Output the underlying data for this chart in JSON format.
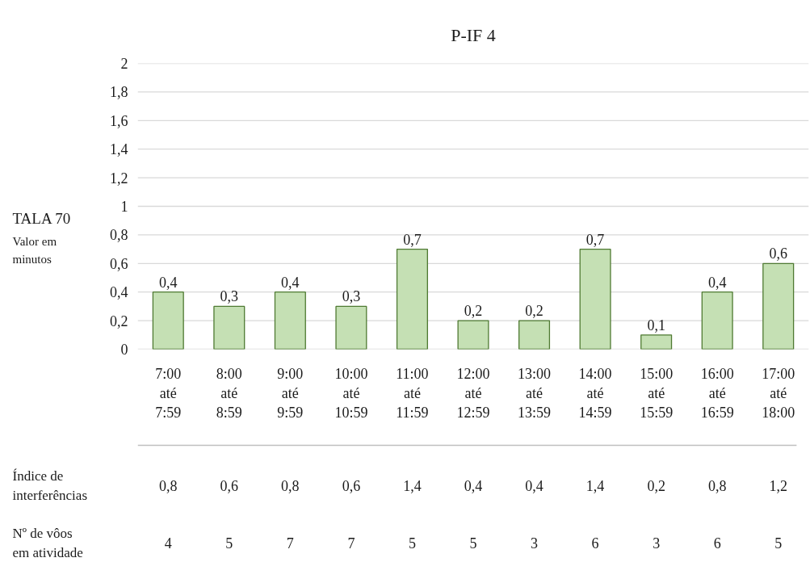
{
  "chart_data": [
    {
      "type": "bar",
      "title": "P-IF 4",
      "ylabel": "TALA 70\nValor em minutos",
      "categories": [
        "7:00 até 7:59",
        "8:00 até 8:59",
        "9:00 até 9:59",
        "10:00 até 10:59",
        "11:00 até 11:59",
        "12:00 até 12:59",
        "13:00 até 13:59",
        "14:00 até 14:59",
        "15:00 até 15:59",
        "16:00 até 16:59",
        "17:00 até 18:00"
      ],
      "series": [
        {
          "color": "#c5e0b4",
          "values": [
            0.4,
            0.3,
            0.4,
            0.3,
            0.7,
            0.2,
            0.2,
            0.7,
            0.1,
            0.4,
            0.6
          ],
          "value_labels": [
            "0,4",
            "0,3",
            "0,4",
            "0,3",
            "0,7",
            "0,2",
            "0,2",
            "0,7",
            "0,1",
            "0,4",
            "0,6"
          ]
        }
      ],
      "ylim": [
        0,
        2
      ],
      "yticks": [
        0,
        {
          "value": 0.2,
          "label": "0,2"
        },
        {
          "value": 0.4,
          "label": "0,4"
        },
        {
          "value": 0.6,
          "label": "0,6"
        },
        {
          "value": 0.8,
          "label": "0,8"
        },
        1,
        {
          "value": 1.2,
          "label": "1,2"
        },
        {
          "value": 1.4,
          "label": "1,4"
        },
        {
          "value": 1.6,
          "label": "1,6"
        },
        {
          "value": 1.8,
          "label": "1,8"
        },
        2
      ],
      "grid": "y"
    },
    {
      "type": "heatmap",
      "categories": [
        null,
        null,
        null,
        null,
        null,
        null,
        null,
        null,
        null,
        null,
        null
      ],
      "y_categories": [
        "Índice de interferências",
        "Nº de vôos em atividade"
      ],
      "cells": [
        [
          0.8,
          0.6,
          0.8,
          0.6,
          1.4,
          0.4,
          0.4,
          1.4,
          0.2,
          0.8,
          1.2
        ],
        [
          4,
          5,
          7,
          7,
          5,
          5,
          3,
          6,
          3,
          6,
          5
        ]
      ],
      "cell_labels": [
        [
          "0,8",
          "0,6",
          "0,8",
          "0,6",
          "1,4",
          "0,4",
          "0,4",
          "1,4",
          "0,2",
          "0,8",
          "1,2"
        ],
        [
          "4",
          "5",
          "7",
          "7",
          "5",
          "5",
          "3",
          "6",
          "3",
          "6",
          "5"
        ]
      ]
    }
  ]
}
